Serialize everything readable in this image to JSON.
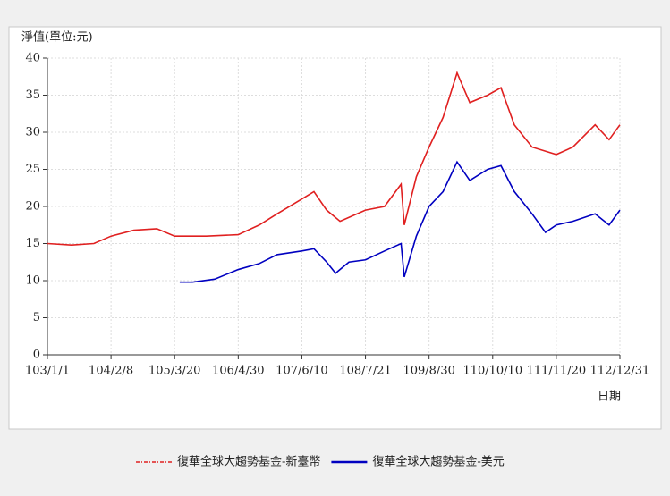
{
  "chart_data": {
    "type": "line",
    "y_label": "淨值(單位:元)",
    "x_label": "日期",
    "xlim": [
      0,
      9
    ],
    "xticks": [
      {
        "value": 0,
        "label": "103/1/1"
      },
      {
        "value": 1,
        "label": "104/2/8"
      },
      {
        "value": 2,
        "label": "105/3/20"
      },
      {
        "value": 3,
        "label": "106/4/30"
      },
      {
        "value": 4,
        "label": "107/6/10"
      },
      {
        "value": 5,
        "label": "108/7/21"
      },
      {
        "value": 6,
        "label": "109/8/30"
      },
      {
        "value": 7,
        "label": "110/10/10"
      },
      {
        "value": 8,
        "label": "111/11/20"
      },
      {
        "value": 9,
        "label": "112/12/31"
      }
    ],
    "ylim": [
      0,
      40
    ],
    "yticks": [
      0,
      5,
      10,
      15,
      20,
      25,
      30,
      35,
      40
    ],
    "grid": true,
    "series": [
      {
        "name": "復華全球大趨勢基金-新臺幣",
        "color": "#e02020",
        "dash": true,
        "x": [
          0,
          0.38,
          0.73,
          1.0,
          1.36,
          1.72,
          2.0,
          2.5,
          3.0,
          3.33,
          3.61,
          4.0,
          4.19,
          4.39,
          4.6,
          5.0,
          5.3,
          5.56,
          5.61,
          5.8,
          6.0,
          6.22,
          6.44,
          6.64,
          6.92,
          7.13,
          7.34,
          7.62,
          8.0,
          8.26,
          8.61,
          8.83,
          9.0
        ],
        "values": [
          15,
          14.8,
          15,
          16,
          16.8,
          17,
          16,
          16,
          16.2,
          17.5,
          19,
          21,
          22,
          19.5,
          18,
          19.5,
          20,
          23,
          17.5,
          24,
          28,
          32,
          38,
          34,
          35,
          36,
          31,
          28,
          27,
          28,
          31,
          29,
          31
        ]
      },
      {
        "name": "復華全球大趨勢基金-美元",
        "color": "#0000c0",
        "dash": false,
        "x": [
          2.08,
          2.28,
          2.63,
          3.0,
          3.33,
          3.61,
          4.0,
          4.19,
          4.39,
          4.53,
          4.74,
          5.0,
          5.3,
          5.56,
          5.61,
          5.8,
          6.0,
          6.22,
          6.44,
          6.64,
          6.92,
          7.13,
          7.34,
          7.62,
          7.83,
          8.0,
          8.26,
          8.61,
          8.83,
          9.0
        ],
        "values": [
          9.8,
          9.8,
          10.2,
          11.5,
          12.3,
          13.5,
          14,
          14.3,
          12.5,
          11,
          12.5,
          12.8,
          14,
          15,
          10.5,
          16,
          20,
          22,
          26,
          23.5,
          25,
          25.5,
          22,
          19,
          16.5,
          17.5,
          18,
          19,
          17.5,
          19.5
        ]
      }
    ]
  }
}
